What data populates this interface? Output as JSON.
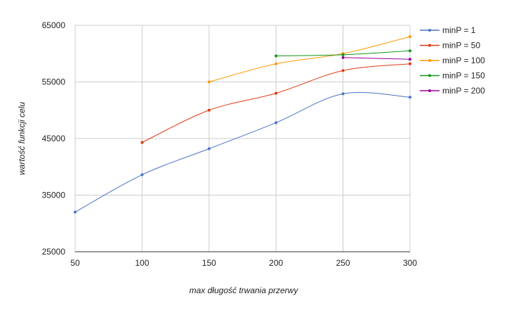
{
  "chart_data": {
    "type": "line",
    "xlabel": "max długość trwania przerwy",
    "ylabel": "wartość funkcji celu",
    "x": [
      50,
      100,
      150,
      200,
      250,
      300
    ],
    "xlim": [
      50,
      300
    ],
    "ylim": [
      25000,
      65000
    ],
    "x_ticks": [
      "50",
      "100",
      "150",
      "200",
      "250",
      "300"
    ],
    "y_ticks": [
      "25000",
      "35000",
      "45000",
      "55000",
      "65000"
    ],
    "grid": true,
    "legend_position": "right",
    "series": [
      {
        "name": "minP = 1",
        "color": "#4a72c4",
        "values": [
          32000,
          38600,
          43200,
          47800,
          52900,
          52300
        ]
      },
      {
        "name": "minP = 50",
        "color": "#dc3912",
        "values": [
          null,
          44300,
          50000,
          53000,
          57000,
          58200
        ]
      },
      {
        "name": "minP = 100",
        "color": "#ff9900",
        "values": [
          null,
          null,
          55000,
          58200,
          60000,
          63000
        ]
      },
      {
        "name": "minP = 150",
        "color": "#109618",
        "values": [
          null,
          null,
          null,
          59600,
          59800,
          60500
        ]
      },
      {
        "name": "minP = 200",
        "color": "#990099",
        "values": [
          null,
          null,
          null,
          null,
          59300,
          59000
        ]
      }
    ]
  }
}
